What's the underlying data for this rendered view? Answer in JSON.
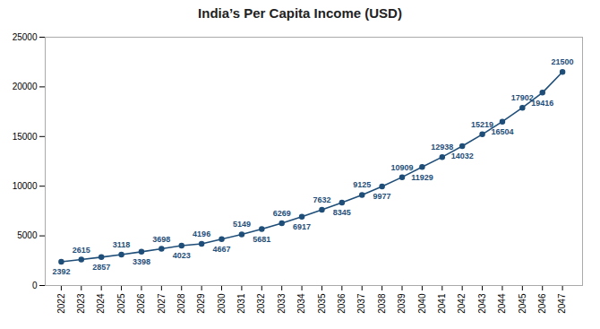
{
  "chart_data": {
    "type": "line",
    "title": "India’s Per Capita Income (USD)",
    "x": [
      2022,
      2023,
      2024,
      2025,
      2026,
      2027,
      2028,
      2029,
      2030,
      2031,
      2032,
      2033,
      2034,
      2035,
      2036,
      2037,
      2038,
      2039,
      2040,
      2041,
      2042,
      2043,
      2044,
      2045,
      2046,
      2047
    ],
    "values": [
      2392,
      2615,
      2857,
      3118,
      3398,
      3698,
      4023,
      4196,
      4667,
      5149,
      5681,
      6269,
      6917,
      7632,
      8345,
      9125,
      9977,
      10909,
      11929,
      12938,
      14032,
      15219,
      16504,
      17902,
      19416,
      21500
    ],
    "color": "#1f4e79",
    "marker": "circle",
    "xlim": [
      2021.2,
      2048.0
    ],
    "xticks": [
      2022,
      2023,
      2024,
      2025,
      2026,
      2027,
      2028,
      2029,
      2030,
      2031,
      2032,
      2033,
      2034,
      2035,
      2036,
      2037,
      2038,
      2039,
      2040,
      2041,
      2042,
      2043,
      2044,
      2045,
      2046,
      2047
    ],
    "ylim": [
      0,
      25000
    ],
    "yticks": [
      0,
      5000,
      10000,
      15000,
      20000,
      25000
    ],
    "grid": false,
    "data_labels": true
  }
}
